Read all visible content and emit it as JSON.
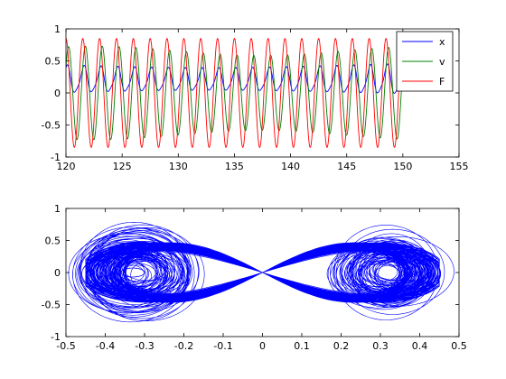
{
  "chart_data": [
    {
      "type": "line",
      "title": "",
      "xlabel": "",
      "ylabel": "",
      "xlim": [
        120,
        155
      ],
      "ylim": [
        -1,
        1
      ],
      "xticks": [
        120,
        125,
        130,
        135,
        140,
        145,
        150,
        155
      ],
      "yticks": [
        -1,
        -0.5,
        0,
        0.5,
        1
      ],
      "grid": false,
      "legend_position": "top-right",
      "series": [
        {
          "name": "x",
          "color": "#0000ff",
          "x_range": [
            120,
            150
          ],
          "amplitude": 0.45,
          "offset": 0.2,
          "period": 1.5
        },
        {
          "name": "v",
          "color": "#008000",
          "x_range": [
            120,
            150
          ],
          "amplitude": 0.73,
          "offset": 0.0,
          "period": 1.5
        },
        {
          "name": "F",
          "color": "#ff0000",
          "x_range": [
            120,
            150
          ],
          "amplitude": 0.85,
          "offset": 0.0,
          "period": 1.5
        }
      ]
    },
    {
      "type": "line",
      "title": "",
      "xlabel": "",
      "ylabel": "",
      "xlim": [
        -0.5,
        0.5
      ],
      "ylim": [
        -1,
        1
      ],
      "xticks": [
        -0.5,
        -0.4,
        -0.3,
        -0.2,
        -0.1,
        0,
        0.1,
        0.2,
        0.3,
        0.4,
        0.5
      ],
      "yticks": [
        -1,
        -0.5,
        0,
        0.5,
        1
      ],
      "grid": false,
      "description": "phase portrait v vs x, double-well Duffing attractor",
      "series": [
        {
          "name": "",
          "color": "#0000ff",
          "lobe_centers": [
            -0.32,
            0.32
          ],
          "x_extent": [
            -0.45,
            0.45
          ],
          "y_extent": [
            -0.72,
            0.75
          ]
        }
      ]
    }
  ]
}
